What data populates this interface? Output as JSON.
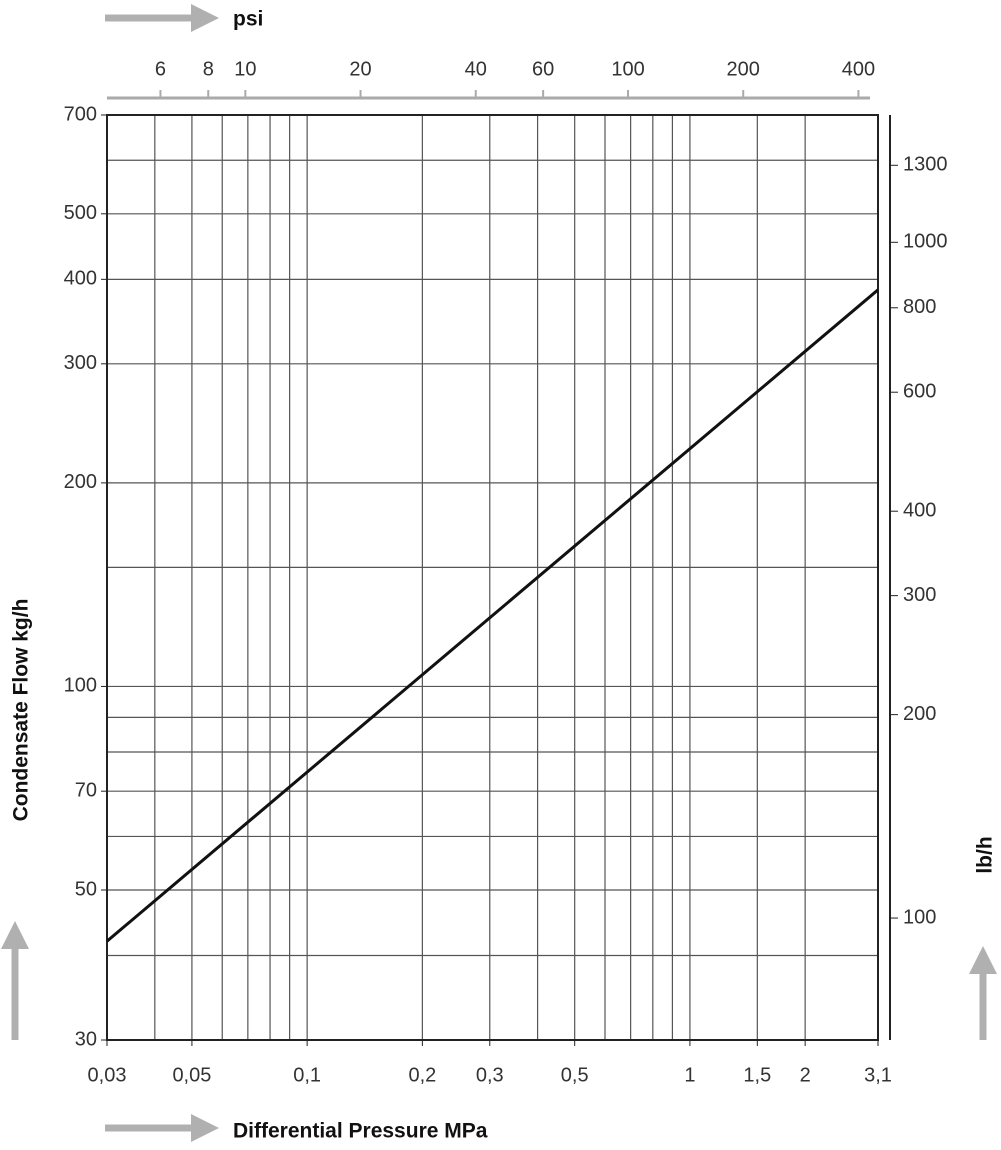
{
  "chart_data": {
    "type": "line",
    "xlabel": "Differential Pressure MPa",
    "ylabel": "Condensate Flow kg/h",
    "x2label": "psi",
    "y2label": "lb/h",
    "xscale": "log",
    "yscale": "log",
    "xlim": [
      0.03,
      3.1
    ],
    "xticks": [
      {
        "value": 0.03,
        "label": "0,03"
      },
      {
        "value": 0.05,
        "label": "0,05"
      },
      {
        "value": 0.1,
        "label": "0,1"
      },
      {
        "value": 0.2,
        "label": "0,2"
      },
      {
        "value": 0.3,
        "label": "0,3"
      },
      {
        "value": 0.5,
        "label": "0,5"
      },
      1,
      {
        "value": 1.5,
        "label": "1,5"
      },
      2,
      {
        "value": 3.1,
        "label": "3,1"
      }
    ],
    "ylim": [
      30,
      700
    ],
    "yticks": [
      30,
      50,
      70,
      100,
      200,
      300,
      400,
      500,
      700
    ],
    "x2lim": [
      4.35,
      450
    ],
    "x2ticks": [
      6,
      8,
      10,
      20,
      40,
      60,
      100,
      200,
      400
    ],
    "y2lim": [
      66,
      1543
    ],
    "y2ticks": [
      100,
      200,
      300,
      400,
      600,
      800,
      1000,
      1300
    ],
    "xgrid": [
      0.04,
      0.05,
      0.06,
      0.07,
      0.08,
      0.09,
      0.1,
      0.2,
      0.3,
      0.4,
      0.5,
      0.6,
      0.7,
      0.8,
      0.9,
      1,
      1.5,
      2
    ],
    "ygrid": [
      40,
      50,
      60,
      70,
      80,
      90,
      100,
      150,
      200,
      300,
      400,
      500,
      600
    ],
    "grid": true,
    "series": [
      {
        "color": "#111111",
        "x": [
          0.03,
          3.1
        ],
        "values": [
          42,
          386
        ]
      }
    ]
  }
}
